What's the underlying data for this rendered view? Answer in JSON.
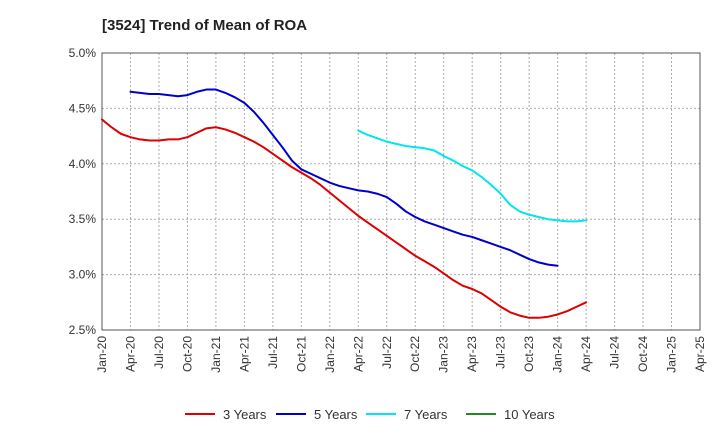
{
  "chart_data": {
    "type": "line",
    "title": "[3524]  Trend of Mean of ROA",
    "xlabel": "",
    "ylabel": "",
    "ylim": [
      2.5,
      5.0
    ],
    "y_ticks": [
      "2.5%",
      "3.0%",
      "3.5%",
      "4.0%",
      "4.5%",
      "5.0%"
    ],
    "y_tick_values": [
      2.5,
      3.0,
      3.5,
      4.0,
      4.5,
      5.0
    ],
    "x_ticks": [
      "Jan-20",
      "Apr-20",
      "Jul-20",
      "Oct-20",
      "Jan-21",
      "Apr-21",
      "Jul-21",
      "Oct-21",
      "Jan-22",
      "Apr-22",
      "Jul-22",
      "Oct-22",
      "Jan-23",
      "Apr-23",
      "Jul-23",
      "Oct-23",
      "Jan-24",
      "Apr-24",
      "Jul-24",
      "Oct-24",
      "Jan-25",
      "Apr-25"
    ],
    "grid": true,
    "legend_position": "bottom",
    "series": [
      {
        "name": "3 Years",
        "color": "#dd0000",
        "start_index": 0,
        "values": [
          4.4,
          4.33,
          4.27,
          4.24,
          4.22,
          4.21,
          4.21,
          4.22,
          4.22,
          4.24,
          4.28,
          4.32,
          4.33,
          4.31,
          4.28,
          4.24,
          4.2,
          4.15,
          4.09,
          4.03,
          3.97,
          3.92,
          3.87,
          3.81,
          3.74,
          3.67,
          3.6,
          3.53,
          3.47,
          3.41,
          3.35,
          3.29,
          3.23,
          3.17,
          3.12,
          3.07,
          3.01,
          2.95,
          2.9,
          2.87,
          2.83,
          2.77,
          2.71,
          2.66,
          2.63,
          2.61,
          2.61,
          2.62,
          2.64,
          2.67,
          2.71,
          2.75
        ]
      },
      {
        "name": "5 Years",
        "color": "#0000cc",
        "start_index": 3,
        "values": [
          4.65,
          4.64,
          4.63,
          4.63,
          4.62,
          4.61,
          4.62,
          4.65,
          4.67,
          4.67,
          4.64,
          4.6,
          4.55,
          4.47,
          4.37,
          4.26,
          4.15,
          4.03,
          3.95,
          3.91,
          3.87,
          3.83,
          3.8,
          3.78,
          3.76,
          3.75,
          3.73,
          3.7,
          3.64,
          3.57,
          3.52,
          3.48,
          3.45,
          3.42,
          3.39,
          3.36,
          3.34,
          3.31,
          3.28,
          3.25,
          3.22,
          3.18,
          3.14,
          3.11,
          3.09,
          3.08
        ]
      },
      {
        "name": "7 Years",
        "color": "#00e5ee",
        "start_index": 27,
        "values": [
          4.3,
          4.26,
          4.23,
          4.2,
          4.18,
          4.16,
          4.15,
          4.14,
          4.12,
          4.07,
          4.03,
          3.98,
          3.94,
          3.88,
          3.81,
          3.73,
          3.63,
          3.57,
          3.54,
          3.52,
          3.5,
          3.49,
          3.48,
          3.48,
          3.49
        ]
      },
      {
        "name": "10 Years",
        "color": "#228822",
        "start_index": 0,
        "values": []
      }
    ]
  }
}
